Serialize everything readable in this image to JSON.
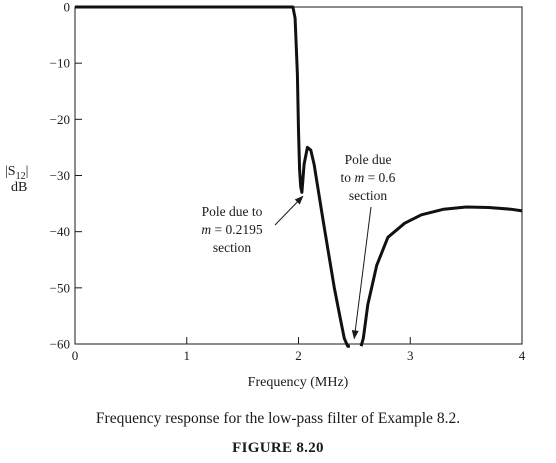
{
  "chart_data": {
    "type": "line",
    "title": "",
    "xlabel": "Frequency (MHz)",
    "ylabel": {
      "main": "|S",
      "sub": "12",
      "close": "|",
      "unit": "dB"
    },
    "xlim": [
      0,
      4
    ],
    "ylim": [
      -60,
      0
    ],
    "xticks": [
      0,
      1,
      2,
      3,
      4
    ],
    "yticks": [
      0,
      -10,
      -20,
      -30,
      -40,
      -50,
      -60
    ],
    "xtick_labels": [
      "0",
      "1",
      "2",
      "3",
      "4"
    ],
    "ytick_labels": [
      "0",
      "−10",
      "−20",
      "−30",
      "−40",
      "−50",
      "−60"
    ],
    "grid": false,
    "series": [
      {
        "x": [
          0,
          0.5,
          1.0,
          1.5,
          1.9,
          1.95,
          1.97,
          1.99,
          2.0,
          2.01,
          2.02,
          2.03,
          2.05,
          2.08,
          2.11,
          2.14,
          2.18,
          2.22,
          2.27,
          2.32,
          2.37,
          2.41,
          2.44,
          2.46
        ],
        "y": [
          0,
          0,
          0,
          0,
          0,
          0,
          -2,
          -12,
          -22,
          -29,
          -32,
          -33,
          -28,
          -25,
          -25.5,
          -28,
          -33,
          -38,
          -44,
          -50,
          -55,
          -59,
          -61,
          -62
        ]
      },
      {
        "x": [
          2.56,
          2.58,
          2.62,
          2.7,
          2.8,
          2.95,
          3.1,
          3.3,
          3.5,
          3.7,
          3.9,
          4.0
        ],
        "y": [
          -62,
          -59,
          -53,
          -46,
          -41,
          -38.5,
          -37,
          -36,
          -35.6,
          -35.7,
          -36,
          -36.3
        ]
      }
    ],
    "annotations": [
      {
        "lines": [
          "Pole due to",
          "m = 0.2195",
          "section"
        ],
        "points_to": [
          2.02,
          -33
        ]
      },
      {
        "lines": [
          "Pole due",
          "to m = 0.6",
          "section"
        ],
        "points_to": [
          2.49,
          -59
        ]
      }
    ]
  },
  "caption": "Frequency response for the low-pass filter of Example 8.2.",
  "figure_label": "FIGURE 8.20"
}
